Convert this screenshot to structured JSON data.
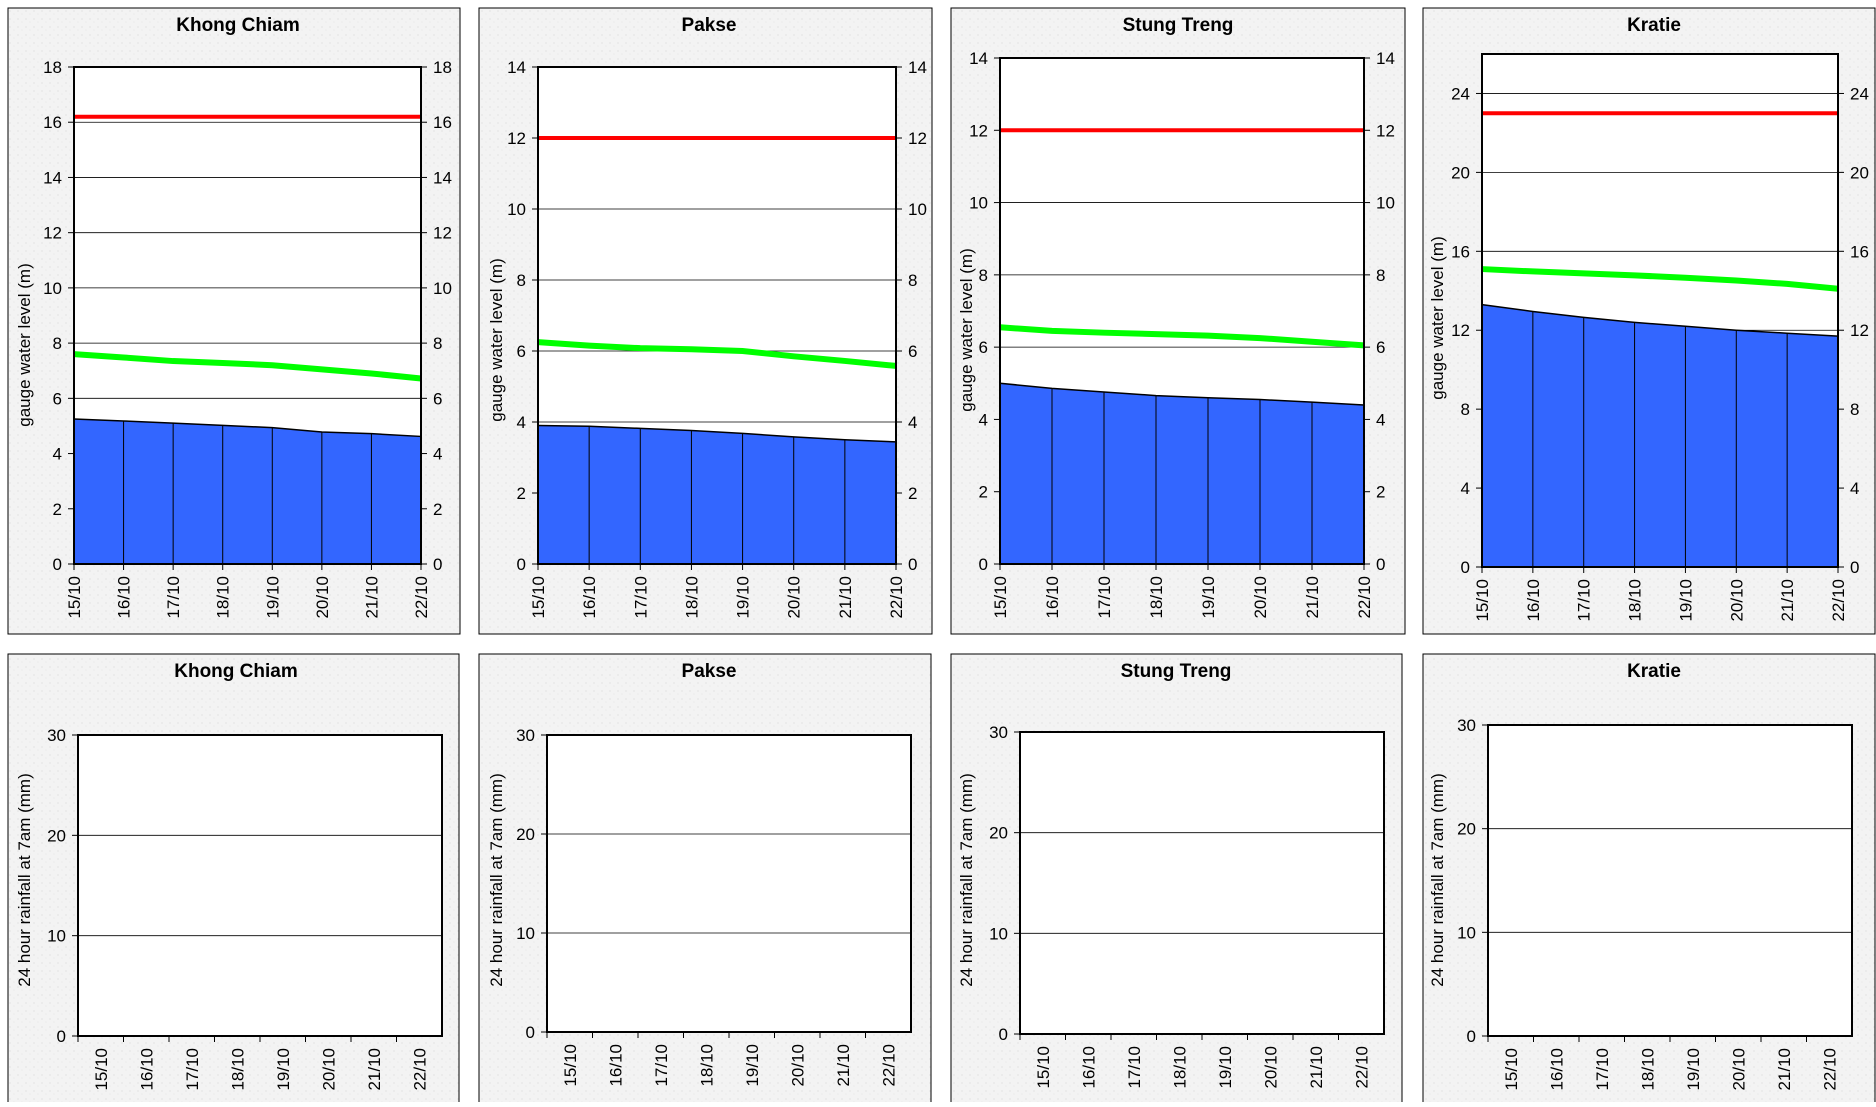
{
  "colors": {
    "level": "#3366ff",
    "flood": "#ff0000",
    "alarm": "#00ff00",
    "panel": "#f3f3f3"
  },
  "chart_data": [
    {
      "type": "area",
      "title": "Khong Chiam",
      "ylabel": "gauge water level (m)",
      "ylim": [
        0,
        18
      ],
      "yticks": [
        0,
        2,
        4,
        6,
        8,
        10,
        12,
        14,
        16,
        18
      ],
      "right_axis": true,
      "categories": [
        "15/10",
        "16/10",
        "17/10",
        "18/10",
        "19/10",
        "20/10",
        "21/10",
        "22/10"
      ],
      "series": [
        {
          "values": [
            5.25,
            5.18,
            5.1,
            5.02,
            4.94,
            4.78,
            4.72,
            4.62
          ]
        },
        {
          "values": [
            16.2,
            16.2,
            16.2,
            16.2,
            16.2,
            16.2,
            16.2,
            16.2
          ]
        },
        {
          "values": [
            7.6,
            7.48,
            7.35,
            7.28,
            7.2,
            7.05,
            6.9,
            6.72
          ]
        }
      ]
    },
    {
      "type": "area",
      "title": "Pakse",
      "ylabel": "gauge water level (m)",
      "ylim": [
        0,
        14
      ],
      "yticks": [
        0,
        2,
        4,
        6,
        8,
        10,
        12,
        14
      ],
      "right_axis": true,
      "categories": [
        "15/10",
        "16/10",
        "17/10",
        "18/10",
        "19/10",
        "20/10",
        "21/10",
        "22/10"
      ],
      "series": [
        {
          "values": [
            3.9,
            3.88,
            3.82,
            3.76,
            3.68,
            3.58,
            3.5,
            3.44
          ]
        },
        {
          "values": [
            12.0,
            12.0,
            12.0,
            12.0,
            12.0,
            12.0,
            12.0,
            12.0
          ]
        },
        {
          "values": [
            6.25,
            6.15,
            6.08,
            6.05,
            6.0,
            5.85,
            5.72,
            5.58
          ]
        }
      ]
    },
    {
      "type": "area",
      "title": "Stung Treng",
      "ylabel": "gauge water level (m)",
      "ylim": [
        0,
        14
      ],
      "yticks": [
        0,
        2,
        4,
        6,
        8,
        10,
        12,
        14
      ],
      "right_axis": true,
      "categories": [
        "15/10",
        "16/10",
        "17/10",
        "18/10",
        "19/10",
        "20/10",
        "21/10",
        "22/10"
      ],
      "series": [
        {
          "values": [
            5.0,
            4.86,
            4.76,
            4.66,
            4.6,
            4.55,
            4.48,
            4.4
          ]
        },
        {
          "values": [
            12.0,
            12.0,
            12.0,
            12.0,
            12.0,
            12.0,
            12.0,
            12.0
          ]
        },
        {
          "values": [
            6.55,
            6.45,
            6.4,
            6.36,
            6.32,
            6.25,
            6.15,
            6.05
          ]
        }
      ]
    },
    {
      "type": "area",
      "title": "Kratie",
      "ylabel": "gauge water level (m)",
      "ylim": [
        0,
        26
      ],
      "yticks": [
        0,
        4,
        8,
        12,
        16,
        20,
        24
      ],
      "right_axis": true,
      "categories": [
        "15/10",
        "16/10",
        "17/10",
        "18/10",
        "19/10",
        "20/10",
        "21/10",
        "22/10"
      ],
      "series": [
        {
          "values": [
            13.3,
            12.95,
            12.65,
            12.4,
            12.2,
            12.0,
            11.85,
            11.7
          ]
        },
        {
          "values": [
            23.0,
            23.0,
            23.0,
            23.0,
            23.0,
            23.0,
            23.0,
            23.0
          ]
        },
        {
          "values": [
            15.1,
            14.98,
            14.88,
            14.78,
            14.66,
            14.52,
            14.35,
            14.1
          ]
        }
      ]
    },
    {
      "type": "bar",
      "title": "Khong Chiam",
      "ylabel": "24 hour rainfall at 7am (mm)",
      "ylim": [
        0,
        30
      ],
      "yticks": [
        0,
        10,
        20,
        30
      ],
      "categories": [
        "15/10",
        "16/10",
        "17/10",
        "18/10",
        "19/10",
        "20/10",
        "21/10",
        "22/10"
      ],
      "values": [
        0,
        0,
        0,
        0,
        0,
        0,
        0,
        0
      ]
    },
    {
      "type": "bar",
      "title": "Pakse",
      "ylabel": "24 hour rainfall at 7am (mm)",
      "ylim": [
        0,
        30
      ],
      "yticks": [
        0,
        10,
        20,
        30
      ],
      "categories": [
        "15/10",
        "16/10",
        "17/10",
        "18/10",
        "19/10",
        "20/10",
        "21/10",
        "22/10"
      ],
      "values": [
        0,
        0,
        0,
        0,
        0,
        0,
        0,
        0
      ]
    },
    {
      "type": "bar",
      "title": "Stung Treng",
      "ylabel": "24 hour rainfall at 7am (mm)",
      "ylim": [
        0,
        30
      ],
      "yticks": [
        0,
        10,
        20,
        30
      ],
      "categories": [
        "15/10",
        "16/10",
        "17/10",
        "18/10",
        "19/10",
        "20/10",
        "21/10",
        "22/10"
      ],
      "values": [
        0,
        0,
        0,
        0,
        0,
        0,
        0,
        0
      ]
    },
    {
      "type": "bar",
      "title": "Kratie",
      "ylabel": "24 hour rainfall at 7am (mm)",
      "ylim": [
        0,
        30
      ],
      "yticks": [
        0,
        10,
        20,
        30
      ],
      "categories": [
        "15/10",
        "16/10",
        "17/10",
        "18/10",
        "19/10",
        "20/10",
        "21/10",
        "22/10"
      ],
      "values": [
        0,
        0,
        0,
        0,
        0,
        0,
        0,
        0
      ]
    }
  ]
}
